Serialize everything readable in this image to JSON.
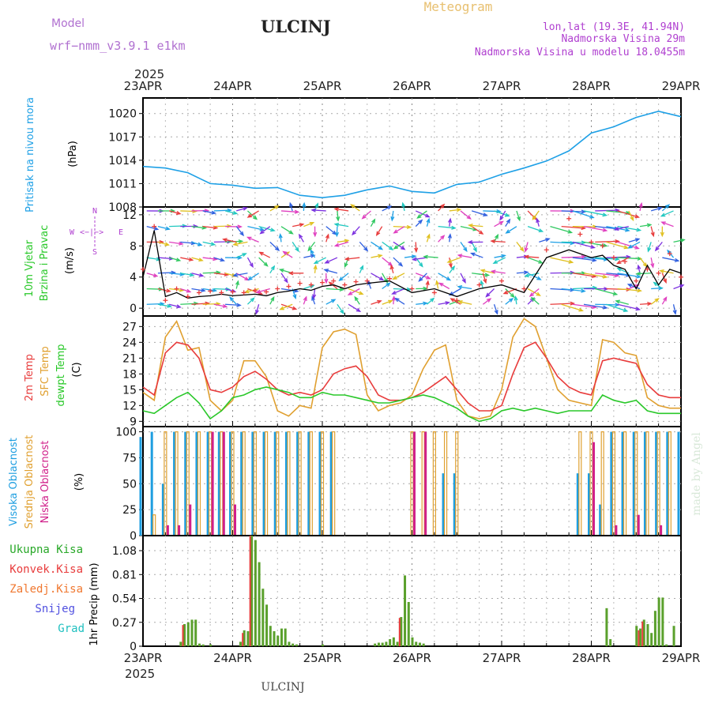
{
  "header": {
    "model_label": "Model",
    "model_name": "wrf−nmm_v3.9.1 e1km",
    "station": "ULCINJ",
    "product": "Meteogram",
    "lonlat": "lon,lat (19.3E, 41.94N)",
    "elevation": "Nadmorska Visina 29m",
    "model_elevation": "Nadmorska Visina u modelu 18.0455m"
  },
  "footer_station": "ULCINJ",
  "watermark": "made by Angel",
  "compass": {
    "n": "N",
    "w": "W",
    "e": "E",
    "s": "S",
    "arrows": "<−|−>"
  },
  "colors": {
    "pressure": "#1ea0e6",
    "temp2m": "#e83c3c",
    "sfc": "#e0a030",
    "dewpt": "#2ac82a",
    "high_cloud": "#1e9ee0",
    "mid_cloud": "#e0a030",
    "low_cloud": "#d0208a",
    "precip_total": "#5aa02c",
    "precip_conv": "#e83c3c",
    "wind_speed": "#000000",
    "wind_gust": "#e83c3c"
  },
  "time_axis": {
    "year": "2025",
    "labels": [
      "23APR",
      "24APR",
      "25APR",
      "26APR",
      "27APR",
      "28APR",
      "29APR"
    ]
  },
  "chart_data": [
    {
      "type": "line",
      "panel": "pressure",
      "title": "Pritisak na nivou mora",
      "ylabel": "(hPa)",
      "ylim": [
        1008,
        1022
      ],
      "yticks": [
        "1008",
        "1011",
        "1014",
        "1017",
        "1020"
      ],
      "grid": true,
      "x": [
        0,
        6,
        12,
        18,
        24,
        30,
        36,
        42,
        48,
        54,
        60,
        66,
        72,
        78,
        84,
        90,
        96,
        102,
        108,
        114,
        120,
        126,
        132,
        138,
        144
      ],
      "series": [
        {
          "values": [
            1013.2,
            1013.0,
            1012.4,
            1011.0,
            1010.8,
            1010.4,
            1010.5,
            1009.5,
            1009.2,
            1009.5,
            1010.2,
            1010.7,
            1010.0,
            1009.8,
            1010.9,
            1011.2,
            1012.2,
            1013.0,
            1013.9,
            1015.2,
            1017.5,
            1018.3,
            1019.5,
            1020.3,
            1019.6
          ]
        }
      ]
    },
    {
      "type": "line",
      "panel": "wind",
      "title": "10m Vjetar Brzina i Pravac",
      "ylabel": "(m/s)",
      "ylim": [
        -1,
        13
      ],
      "yticks": [
        "0",
        "4",
        "8",
        "12"
      ],
      "grid": true,
      "x": [
        0,
        3,
        6,
        9,
        12,
        15,
        18,
        21,
        24,
        27,
        30,
        33,
        36,
        39,
        42,
        45,
        48,
        51,
        54,
        57,
        60,
        66,
        72,
        78,
        84,
        90,
        96,
        102,
        108,
        114,
        117,
        120,
        123,
        126,
        129,
        132,
        135,
        138,
        141,
        144
      ],
      "series": [
        {
          "values": [
            4.0,
            10.0,
            1.5,
            2.0,
            1.3,
            1.5,
            1.6,
            1.8,
            1.6,
            1.7,
            1.8,
            1.6,
            2.0,
            2.2,
            2.5,
            2.3,
            2.8,
            3.0,
            2.5,
            3.0,
            3.2,
            3.5,
            2.0,
            2.5,
            1.5,
            2.5,
            3.0,
            2.0,
            6.5,
            7.5,
            7.0,
            6.5,
            6.8,
            5.5,
            5.0,
            2.5,
            5.5,
            3.0,
            5.0,
            4.5
          ]
        },
        {
          "values": [
            5.0,
            10.5,
            1.0,
            2.5,
            1.5,
            2.0,
            2.2,
            2.0,
            2.1,
            2.0,
            2.3,
            2.1,
            2.5,
            2.8,
            3.2,
            3.0,
            3.3,
            3.5,
            3.0,
            3.4,
            3.5,
            3.8,
            2.5,
            2.0,
            1.0,
            3.0,
            3.5,
            2.5,
            7.5,
            11.5,
            9.5,
            8.5,
            8.0,
            6.5,
            6.0,
            3.5,
            5.0,
            4.5,
            7.0,
            4.0
          ]
        }
      ]
    },
    {
      "type": "line",
      "panel": "temperature",
      "title": "2m Temp / SFC Temp / dewpt Temp",
      "ylabel": "(C)",
      "ylim": [
        8,
        29
      ],
      "yticks": [
        "9",
        "12",
        "15",
        "18",
        "21",
        "24",
        "27"
      ],
      "grid": true,
      "x": [
        0,
        3,
        6,
        9,
        12,
        15,
        18,
        21,
        24,
        27,
        30,
        33,
        36,
        39,
        42,
        45,
        48,
        51,
        54,
        57,
        60,
        63,
        66,
        69,
        72,
        75,
        78,
        81,
        84,
        87,
        90,
        93,
        96,
        99,
        102,
        105,
        108,
        111,
        114,
        117,
        120,
        123,
        126,
        129,
        132,
        135,
        138,
        141,
        144
      ],
      "series": [
        {
          "values": [
            15.5,
            14.0,
            22.0,
            24.0,
            23.5,
            21.0,
            15.0,
            14.5,
            15.5,
            17.5,
            18.5,
            17.0,
            15.0,
            14.0,
            14.5,
            14.0,
            15.0,
            18.0,
            19.0,
            19.5,
            17.5,
            14.0,
            13.0,
            13.0,
            13.5,
            14.5,
            16.0,
            17.5,
            15.0,
            12.5,
            11.0,
            11.0,
            12.0,
            18.0,
            23.0,
            24.0,
            21.0,
            17.5,
            15.5,
            14.5,
            14.0,
            20.5,
            21.0,
            20.5,
            20.0,
            16.0,
            14.0,
            13.5,
            13.5
          ]
        },
        {
          "values": [
            14.5,
            13.0,
            25.0,
            28.0,
            22.5,
            23.0,
            13.0,
            11.0,
            13.0,
            20.5,
            20.5,
            17.5,
            11.0,
            10.0,
            12.0,
            11.5,
            23.0,
            26.0,
            26.5,
            25.5,
            14.0,
            11.0,
            12.0,
            12.5,
            14.0,
            19.0,
            22.5,
            23.5,
            13.0,
            10.0,
            9.5,
            10.0,
            15.0,
            25.0,
            28.5,
            27.0,
            21.0,
            15.0,
            13.0,
            12.5,
            12.0,
            24.5,
            24.0,
            22.0,
            21.5,
            13.5,
            12.0,
            11.5,
            11.5
          ]
        },
        {
          "values": [
            11.0,
            10.5,
            12.0,
            13.5,
            14.5,
            12.5,
            9.5,
            11.0,
            13.5,
            14.0,
            15.0,
            15.5,
            15.0,
            14.5,
            13.5,
            13.5,
            14.5,
            14.0,
            14.0,
            13.5,
            13.0,
            12.5,
            12.5,
            13.0,
            13.5,
            14.0,
            13.5,
            12.5,
            11.5,
            10.0,
            9.0,
            9.5,
            11.0,
            11.5,
            11.0,
            11.5,
            11.0,
            10.5,
            11.0,
            11.0,
            11.0,
            14.0,
            13.0,
            12.5,
            13.0,
            11.0,
            10.5,
            10.5,
            10.5
          ]
        }
      ]
    },
    {
      "type": "bar",
      "panel": "clouds",
      "title": "Visoka Oblacnost / Srednja Oblacnost / Niska Oblacnost",
      "ylabel": "(%)",
      "ylim": [
        0,
        105
      ],
      "yticks": [
        "0",
        "25",
        "50",
        "75",
        "100"
      ],
      "grid": true,
      "x": [
        0,
        3,
        6,
        9,
        12,
        15,
        18,
        21,
        24,
        27,
        30,
        33,
        36,
        39,
        42,
        45,
        48,
        51,
        54,
        57,
        60,
        63,
        66,
        69,
        72,
        75,
        78,
        81,
        84,
        87,
        90,
        93,
        96,
        99,
        102,
        105,
        108,
        111,
        114,
        117,
        120,
        123,
        126,
        129,
        132,
        135,
        138,
        141,
        144
      ],
      "series": [
        {
          "name": "Visoka Oblacnost",
          "values": [
            95,
            100,
            50,
            100,
            100,
            100,
            100,
            100,
            100,
            100,
            100,
            100,
            100,
            100,
            100,
            100,
            100,
            100,
            0,
            0,
            0,
            0,
            0,
            0,
            0,
            0,
            0,
            60,
            60,
            0,
            0,
            0,
            0,
            0,
            0,
            0,
            0,
            0,
            0,
            60,
            60,
            30,
            100,
            100,
            100,
            100,
            100,
            100,
            100
          ]
        },
        {
          "name": "Srednja Oblacnost",
          "values": [
            0,
            20,
            100,
            100,
            100,
            100,
            100,
            100,
            100,
            100,
            100,
            100,
            100,
            100,
            100,
            100,
            100,
            100,
            0,
            0,
            0,
            0,
            0,
            0,
            100,
            100,
            100,
            100,
            100,
            0,
            0,
            0,
            0,
            0,
            0,
            0,
            0,
            0,
            0,
            100,
            100,
            100,
            100,
            100,
            100,
            100,
            100,
            100,
            0
          ]
        },
        {
          "name": "Niska Oblacnost",
          "values": [
            0,
            0,
            10,
            10,
            30,
            0,
            100,
            100,
            30,
            0,
            0,
            0,
            0,
            0,
            0,
            0,
            0,
            0,
            0,
            0,
            0,
            0,
            0,
            0,
            100,
            100,
            0,
            0,
            0,
            0,
            0,
            0,
            0,
            0,
            0,
            0,
            0,
            0,
            0,
            0,
            90,
            0,
            10,
            0,
            20,
            0,
            10,
            0,
            0
          ]
        }
      ]
    },
    {
      "type": "bar",
      "panel": "precipitation",
      "title": "1hr Precip",
      "ylabel": "(mm)",
      "ylim": [
        0,
        1.25
      ],
      "yticks": [
        "0",
        "0.27",
        "0.54",
        "0.81",
        "1.08"
      ],
      "legend": [
        "Ukupna Kisa",
        "Konvek.Kisa",
        "Zaledj.Kisa",
        "Snijeg",
        "Grad"
      ],
      "grid": true,
      "x": [
        10,
        11,
        12,
        13,
        14,
        15,
        16,
        18,
        26,
        27,
        28,
        29,
        30,
        31,
        32,
        33,
        34,
        35,
        36,
        37,
        38,
        39,
        40,
        41,
        48,
        62,
        63,
        64,
        65,
        66,
        67,
        68,
        69,
        70,
        71,
        72,
        73,
        74,
        75,
        124,
        125,
        132,
        133,
        134,
        135,
        136,
        137,
        138,
        139,
        140,
        142
      ],
      "series": [
        {
          "name": "Ukupna Kisa",
          "values": [
            0.05,
            0.25,
            0.27,
            0.3,
            0.3,
            0.03,
            0.02,
            0.02,
            0.05,
            0.18,
            0.17,
            1.25,
            1.2,
            0.95,
            0.65,
            0.47,
            0.23,
            0.17,
            0.12,
            0.2,
            0.2,
            0.05,
            0.03,
            0.02,
            0.02,
            0.03,
            0.04,
            0.04,
            0.05,
            0.08,
            0.1,
            0.05,
            0.33,
            0.8,
            0.5,
            0.1,
            0.05,
            0.04,
            0.03,
            0.43,
            0.08,
            0.23,
            0.2,
            0.3,
            0.25,
            0.15,
            0.4,
            0.55,
            0.55,
            0.02,
            0.23
          ]
        },
        {
          "name": "Konvek.Kisa",
          "values": [
            0,
            0.24,
            0,
            0,
            0,
            0,
            0,
            0,
            0,
            0.15,
            0,
            1.25,
            0,
            0,
            0,
            0,
            0,
            0,
            0,
            0,
            0,
            0,
            0,
            0,
            0,
            0,
            0,
            0,
            0,
            0,
            0,
            0,
            0.32,
            0,
            0,
            0,
            0,
            0,
            0,
            0,
            0,
            0,
            0.18,
            0.28,
            0,
            0,
            0,
            0,
            0,
            0,
            0
          ]
        }
      ]
    }
  ]
}
